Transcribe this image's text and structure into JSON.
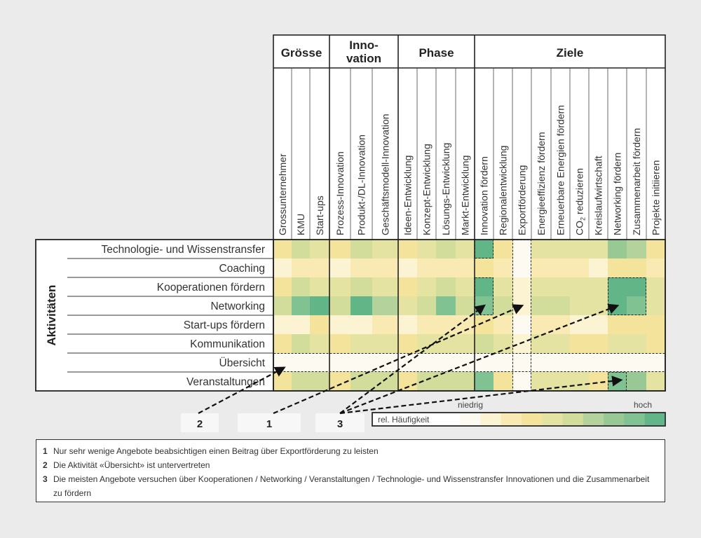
{
  "chart_data": {
    "type": "heatmap",
    "y_axis_label": "Aktivitäten",
    "groups": [
      {
        "name": "Grösse",
        "columns": [
          "Grossunternehmer",
          "KMU",
          "Start-ups"
        ]
      },
      {
        "name": "Innovation",
        "label_lines": [
          "Inno-",
          "vation"
        ],
        "columns": [
          "Prozess-Innovation",
          "Produkt-/DL-Innovation",
          "Geschäftsmodell-Innovation"
        ]
      },
      {
        "name": "Phase",
        "columns": [
          "Ideen-Entwicklung",
          "Konzept-Entwicklung",
          "Lösungs-Entwicklung",
          "Markt-Entwicklung"
        ]
      },
      {
        "name": "Ziele",
        "columns": [
          "Innovation fördern",
          "Regionalentwicklung",
          "Exportförderung",
          "Energieeffizienz fördern",
          "Erneuerbare Energien fördern",
          "CO2 reduzieren",
          "Kreislaufwirtschaft",
          "Networking fördern",
          "Zusammenarbeit fördern",
          "Projekte initiieren"
        ]
      }
    ],
    "rows": [
      "Technologie- und Wissenstransfer",
      "Coaching",
      "Kooperationen fördern",
      "Networking",
      "Start-ups fördern",
      "Kommunikation",
      "Übersicht",
      "Veranstaltungen"
    ],
    "values": [
      [
        3,
        5,
        4,
        3,
        5,
        4,
        3,
        4,
        5,
        4,
        9,
        3,
        0,
        4,
        4,
        4,
        4,
        7,
        6,
        3
      ],
      [
        1,
        2,
        2,
        1,
        2,
        2,
        1,
        2,
        2,
        2,
        3,
        2,
        0,
        2,
        2,
        2,
        1,
        3,
        3,
        2
      ],
      [
        3,
        5,
        4,
        4,
        5,
        4,
        3,
        4,
        5,
        4,
        9,
        4,
        1,
        4,
        4,
        4,
        4,
        9,
        9,
        4
      ],
      [
        5,
        8,
        9,
        5,
        9,
        6,
        4,
        5,
        8,
        5,
        8,
        5,
        1,
        5,
        5,
        4,
        4,
        9,
        8,
        4
      ],
      [
        1,
        1,
        3,
        1,
        1,
        2,
        1,
        2,
        2,
        2,
        3,
        2,
        0,
        2,
        2,
        1,
        1,
        3,
        3,
        3
      ],
      [
        3,
        5,
        4,
        3,
        4,
        4,
        3,
        4,
        4,
        4,
        5,
        4,
        1,
        4,
        4,
        3,
        3,
        4,
        4,
        3
      ],
      [
        0,
        0,
        0,
        0,
        0,
        0,
        0,
        0,
        0,
        0,
        0,
        0,
        0,
        0,
        0,
        0,
        0,
        0,
        0,
        0
      ],
      [
        3,
        5,
        5,
        3,
        5,
        5,
        3,
        5,
        5,
        5,
        8,
        3,
        0,
        4,
        4,
        4,
        3,
        8,
        7,
        4
      ]
    ],
    "value_scale": [
      0,
      9
    ],
    "highlight_boxes": [
      {
        "rows": [
          0,
          0
        ],
        "cols": [
          10,
          10
        ]
      },
      {
        "rows": [
          2,
          3
        ],
        "cols": [
          10,
          10
        ]
      },
      {
        "rows": [
          0,
          7
        ],
        "cols": [
          12,
          12
        ]
      },
      {
        "rows": [
          2,
          3
        ],
        "cols": [
          17,
          18
        ]
      },
      {
        "rows": [
          6,
          6
        ],
        "cols": [
          0,
          19
        ]
      },
      {
        "rows": [
          7,
          7
        ],
        "cols": [
          17,
          17
        ]
      }
    ],
    "legend": {
      "title": "rel. Häufigkeit",
      "low_label": "niedrig",
      "high_label": "hoch",
      "colors": [
        "#fdfbf1",
        "#fbf3d2",
        "#f8eab2",
        "#f4e39b",
        "#e4e3a2",
        "#d2dc9b",
        "#b4d29c",
        "#98c994",
        "#80c291",
        "#62b587"
      ]
    },
    "markers": [
      {
        "label": "2",
        "targets": [
          {
            "row": 6,
            "col": 0
          }
        ]
      },
      {
        "label": "1",
        "targets": [
          {
            "row": 3,
            "col": 12
          }
        ]
      },
      {
        "label": "3",
        "targets": [
          {
            "row": 3,
            "col": 10
          },
          {
            "row": 3,
            "col": 17
          },
          {
            "row": 7,
            "col": 17
          }
        ]
      }
    ]
  },
  "footnotes": [
    {
      "num": "1",
      "text": "Nur sehr wenige Angebote beabsichtigen einen Beitrag über Exportförderung zu leisten"
    },
    {
      "num": "2",
      "text": "Die Aktivität «Übersicht» ist untervertreten"
    },
    {
      "num": "3",
      "text": "Die meisten Angebote versuchen über Kooperationen / Networking / Veranstaltungen / Technologie- und Wissenstransfer Innovationen und die Zusammenarbeit zu fördern"
    }
  ]
}
